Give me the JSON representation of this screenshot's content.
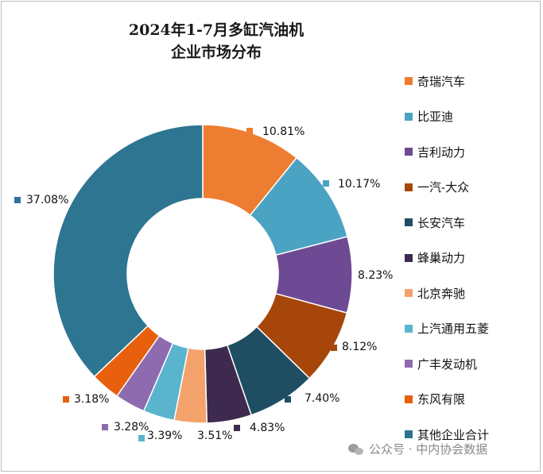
{
  "chart_data": {
    "type": "pie",
    "style": "donut",
    "title_lines": [
      "2024年1-7月多缸汽油机",
      "企业市场分布"
    ],
    "slices": [
      {
        "label": "奇瑞汽车",
        "display": "10.81%",
        "value": 10.81,
        "color": "#ED7D31"
      },
      {
        "label": "比亚迪",
        "display": "10.17%",
        "value": 10.17,
        "color": "#4BA3C3"
      },
      {
        "label": "吉利动力",
        "display": "8.23%",
        "value": 8.23,
        "color": "#6E4A94"
      },
      {
        "label": "一汽-大众",
        "display": "8.12%",
        "value": 8.12,
        "color": "#A6460A"
      },
      {
        "label": "长安汽车",
        "display": "7.40%",
        "value": 7.4,
        "color": "#1F4E63"
      },
      {
        "label": "蜂巢动力",
        "display": "4.83%",
        "value": 4.83,
        "color": "#3D2A4E"
      },
      {
        "label": "北京奔驰",
        "display": "3.51%",
        "value": 3.51,
        "color": "#F4A26B"
      },
      {
        "label": "上汽通用五菱",
        "display": "3.39%",
        "value": 3.39,
        "color": "#5AB4CE"
      },
      {
        "label": "广丰发动机",
        "display": "3.28%",
        "value": 3.28,
        "color": "#8D6BAE"
      },
      {
        "label": "东风有限",
        "display": "3.18%",
        "value": 3.18,
        "color": "#E8600E"
      },
      {
        "label": "其他企业合计",
        "display": "37.08%",
        "value": 37.08,
        "color": "#2E7591"
      }
    ],
    "legend_position": "right"
  },
  "watermark": {
    "text": "公众号 · 中内协会数据",
    "icon": "wechat-icon"
  }
}
